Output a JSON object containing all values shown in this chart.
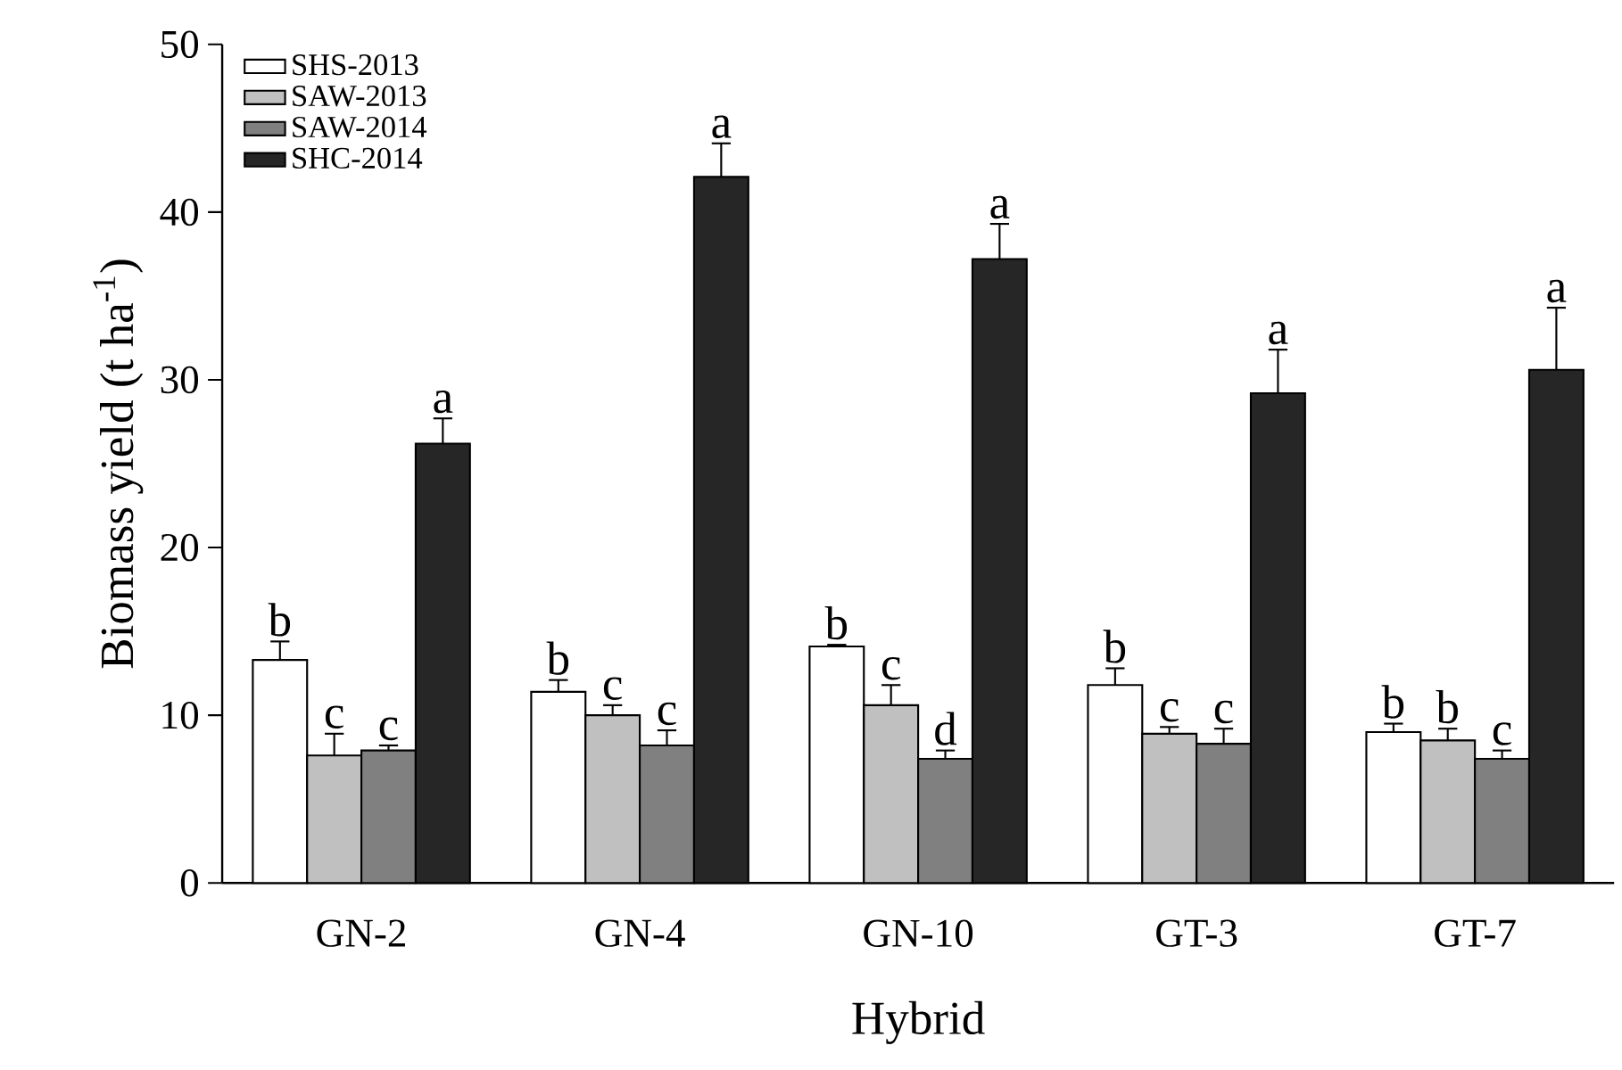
{
  "chart_data": {
    "type": "bar",
    "xlabel": "Hybrid",
    "ylabel": "Biomass yield (t ha$^{-1}$)",
    "categories": [
      "GN-2",
      "GN-4",
      "GN-10",
      "GT-3",
      "GT-7"
    ],
    "series": [
      {
        "name": "SHS-2013",
        "color": "#ffffff",
        "values": [
          13.3,
          11.4,
          14.1,
          11.8,
          9.0
        ],
        "errors": [
          1.1,
          0.7,
          0.1,
          1.0,
          0.5
        ]
      },
      {
        "name": "SAW-2013",
        "color": "#c0c0c0",
        "values": [
          7.6,
          10.0,
          10.6,
          8.9,
          8.5
        ],
        "errors": [
          1.3,
          0.6,
          1.2,
          0.4,
          0.7
        ]
      },
      {
        "name": "SAW-2014",
        "color": "#808080",
        "values": [
          7.9,
          8.2,
          7.4,
          8.3,
          7.4
        ],
        "errors": [
          0.3,
          0.9,
          0.5,
          0.9,
          0.5
        ]
      },
      {
        "name": "SHC-2014",
        "color": "#262626",
        "values": [
          26.2,
          42.1,
          37.2,
          29.2,
          30.6
        ],
        "errors": [
          1.5,
          2.0,
          2.1,
          2.6,
          3.7
        ]
      }
    ],
    "ylim": [
      0,
      50
    ],
    "yticks": [
      0,
      10,
      20,
      30,
      40,
      50
    ],
    "grid": false,
    "legend": "top left",
    "annotations": [
      "b",
      "c",
      "c",
      "a",
      "b",
      "c",
      "c",
      "a",
      "b",
      "c",
      "d",
      "a",
      "b",
      "c",
      "c",
      "a",
      "b",
      "b",
      "c",
      "a"
    ]
  }
}
